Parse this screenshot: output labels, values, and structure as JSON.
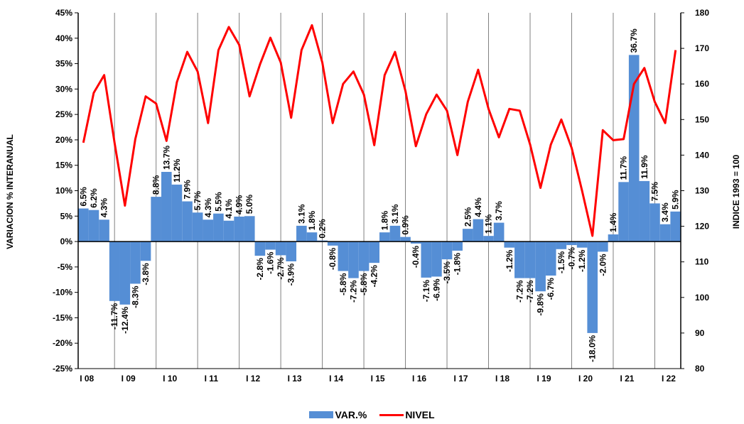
{
  "chart_data": {
    "type": "bar+line",
    "ylabel_left": "VARIACION % INTERANUAL",
    "ylabel_right": "INDICE 1993 = 100",
    "y_left_range": [
      -25,
      45
    ],
    "y_left_ticks": [
      "-25%",
      "-20%",
      "-15%",
      "-10%",
      "-5%",
      "0%",
      "5%",
      "10%",
      "15%",
      "20%",
      "25%",
      "30%",
      "35%",
      "40%",
      "45%"
    ],
    "y_right_range": [
      80,
      180
    ],
    "y_right_ticks": [
      "80",
      "90",
      "100",
      "110",
      "120",
      "130",
      "140",
      "150",
      "160",
      "170",
      "180"
    ],
    "year_labels": [
      "I 08",
      "I 09",
      "I 10",
      "I 11",
      "I 12",
      "I 13",
      "I 14",
      "I 15",
      "I 16",
      "I 17",
      "I 18",
      "I 19",
      "I 20",
      "I 21",
      "I 22"
    ],
    "grid": "vertical lines at year starts",
    "bar_color": "#558ed5",
    "line_color": "#ff0000",
    "series": [
      {
        "name": "VAR.%",
        "type": "bar",
        "values": [
          6.5,
          6.2,
          4.3,
          -11.7,
          -12.4,
          -8.3,
          -3.8,
          8.8,
          13.7,
          11.2,
          7.9,
          5.7,
          4.3,
          5.5,
          4.1,
          4.9,
          5.0,
          -2.8,
          -1.6,
          -2.7,
          -3.9,
          3.1,
          1.8,
          0.2,
          -0.8,
          -5.8,
          -7.2,
          -5.8,
          -4.2,
          1.8,
          3.1,
          0.9,
          -0.4,
          -7.1,
          -6.9,
          -3.5,
          -1.8,
          2.5,
          4.4,
          1.1,
          3.7,
          -1.2,
          -7.2,
          -7.2,
          -9.8,
          -6.7,
          -1.5,
          -0.7,
          -1.2,
          -18.0,
          -2.0,
          1.4,
          11.7,
          36.7,
          11.9,
          7.5,
          3.4,
          5.9
        ],
        "labels": [
          "6.5%",
          "6.2%",
          "4.3%",
          "-11.7%",
          "-12.4%",
          "-8.3%",
          "-3.8%",
          "8.8%",
          "13.7%",
          "11.2%",
          "7.9%",
          "5.7%",
          "4.3%",
          "5.5%",
          "4.1%",
          "4.9%",
          "5.0%",
          "-2.8%",
          "-1.6%",
          "-2.7%",
          "-3.9%",
          "3.1%",
          "1.8%",
          "0.2%",
          "-0.8%",
          "-5.8%",
          "-7.2%",
          "-5.8%",
          "-4.2%",
          "1.8%",
          "3.1%",
          "0.9%",
          "-0.4%",
          "-7.1%",
          "-6.9%",
          "-3.5%",
          "-1.8%",
          "2.5%",
          "4.4%",
          "1.1%",
          "3.7%",
          "-1.2%",
          "-7.2%",
          "-7.2%",
          "-9.8%",
          "-6.7%",
          "-1.5%",
          "-0.7%",
          "-1.2%",
          "-18.0%",
          "-2.0%",
          "1.4%",
          "11.7%",
          "36.7%",
          "11.9%",
          "7.5%",
          "3.4%",
          "5.9%"
        ]
      },
      {
        "name": "NIVEL",
        "type": "line",
        "values": [
          143.5,
          157.5,
          162.5,
          143.5,
          125.8,
          144.5,
          156.5,
          154.5,
          144.0,
          160.5,
          169.0,
          163.5,
          149.0,
          169.5,
          176.0,
          171.0,
          156.5,
          165.5,
          173.0,
          166.0,
          150.5,
          169.5,
          176.5,
          166.0,
          149.0,
          160.0,
          163.5,
          157.0,
          142.8,
          162.5,
          169.0,
          158.0,
          142.5,
          151.5,
          157.0,
          152.5,
          140.0,
          155.0,
          164.0,
          153.0,
          145.0,
          153.0,
          152.5,
          143.0,
          130.8,
          143.0,
          150.0,
          142.0,
          130.0,
          117.3,
          147.0,
          144.2,
          144.5,
          160.0,
          164.5,
          155.0,
          149.0,
          169.5
        ]
      }
    ],
    "legend": [
      {
        "name": "VAR.%",
        "kind": "bar"
      },
      {
        "name": "NIVEL",
        "kind": "line"
      }
    ],
    "legend_position": "bottom-center"
  }
}
